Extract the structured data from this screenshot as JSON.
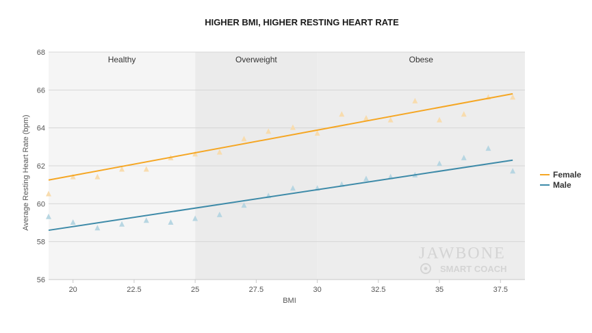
{
  "chart_data": {
    "type": "scatter",
    "title": "HIGHER BMI, HIGHER RESTING HEART RATE",
    "xlabel": "BMI",
    "ylabel": "Average Resting Heart Rate (bpm)",
    "xlim": [
      19,
      38.5
    ],
    "ylim": [
      56,
      68
    ],
    "xticks": [
      "20",
      "22.5",
      "25",
      "27.5",
      "30",
      "32.5",
      "35",
      "37.5"
    ],
    "yticks": [
      "56",
      "58",
      "60",
      "62",
      "64",
      "66",
      "68"
    ],
    "grid": true,
    "legend_position": "right",
    "zones": [
      {
        "label": "Healthy",
        "from": 19,
        "to": 25,
        "color": "#f5f5f5"
      },
      {
        "label": "Overweight",
        "from": 25,
        "to": 30,
        "color": "#ebebeb"
      },
      {
        "label": "Obese",
        "from": 30,
        "to": 38.5,
        "color": "#ededed"
      }
    ],
    "series": [
      {
        "name": "Female",
        "color": "#f5a623",
        "point_color": "#f8dcae",
        "x": [
          19,
          20,
          21,
          22,
          23,
          24,
          25,
          26,
          27,
          28,
          29,
          30,
          31,
          32,
          33,
          34,
          35,
          36,
          37,
          38
        ],
        "y": [
          60.5,
          61.4,
          61.4,
          61.8,
          61.8,
          62.4,
          62.6,
          62.7,
          63.4,
          63.8,
          64.0,
          63.7,
          64.7,
          64.5,
          64.4,
          65.4,
          64.4,
          64.7,
          65.6,
          65.6
        ],
        "trend": [
          [
            19,
            61.25
          ],
          [
            38,
            65.8
          ]
        ]
      },
      {
        "name": "Male",
        "color": "#3d8aa8",
        "point_color": "#b7d6e2",
        "x": [
          19,
          20,
          21,
          22,
          23,
          24,
          25,
          26,
          27,
          28,
          29,
          30,
          31,
          32,
          33,
          34,
          35,
          36,
          37,
          38
        ],
        "y": [
          59.3,
          59.0,
          58.7,
          58.9,
          59.1,
          59.0,
          59.2,
          59.4,
          59.9,
          60.4,
          60.8,
          60.8,
          61.0,
          61.3,
          61.4,
          61.5,
          62.1,
          62.4,
          62.9,
          61.7
        ],
        "trend": [
          [
            19,
            58.6
          ],
          [
            38,
            62.3
          ]
        ]
      }
    ]
  },
  "watermark": {
    "brand": "JAWBONE",
    "product": "SMART COACH",
    "color": "#d4d4d4"
  }
}
